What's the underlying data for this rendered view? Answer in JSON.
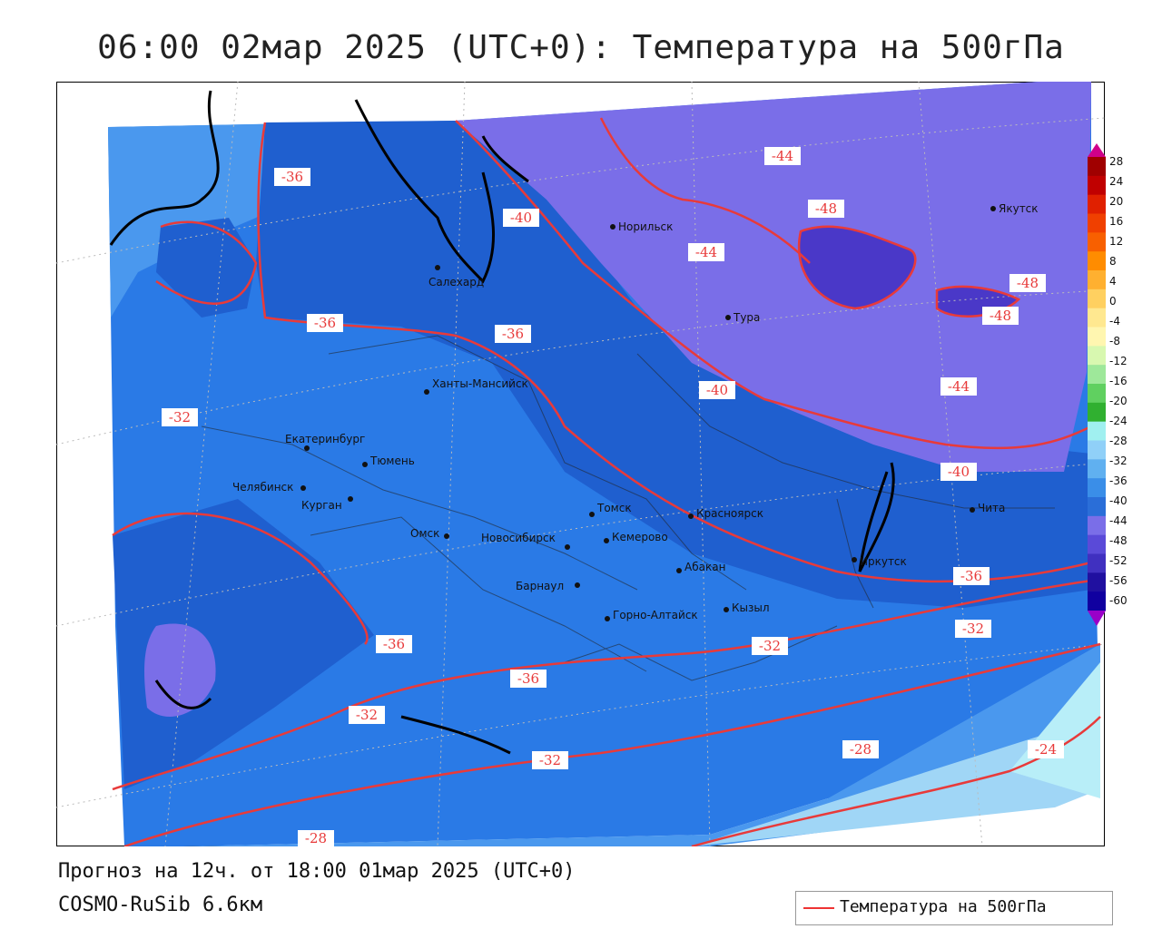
{
  "title": "06:00 02мар 2025 (UTC+0): Температура на 500гПа",
  "footer": {
    "forecast": "Прогноз на 12ч. от 18:00 01мар 2025 (UTC+0)",
    "model": "COSMO-RuSib 6.6км"
  },
  "legend": {
    "label": "Температура на 500гПа",
    "color": "#e83a3a"
  },
  "colorbar": {
    "ticks": [
      "28",
      "24",
      "20",
      "16",
      "12",
      "8",
      "4",
      "0",
      "-4",
      "-8",
      "-12",
      "-16",
      "-20",
      "-24",
      "-28",
      "-32",
      "-36",
      "-40",
      "-44",
      "-48",
      "-52",
      "-56",
      "-60"
    ],
    "colors": [
      "#a00000",
      "#c00000",
      "#e02000",
      "#f04000",
      "#f86000",
      "#ff8c00",
      "#ffb030",
      "#ffd060",
      "#ffe890",
      "#fff6b0",
      "#d8f8b0",
      "#9ee89a",
      "#60d060",
      "#30b030",
      "#a0f0f0",
      "#90d0f8",
      "#60b0f0",
      "#3a8ee8",
      "#2a6ed8",
      "#7a6ee8",
      "#5a4ad8",
      "#4030c0",
      "#2010a0",
      "#1000a0"
    ]
  },
  "contour_labels": [
    "-44",
    "-48",
    "-48",
    "-48",
    "-40",
    "-44",
    "-36",
    "-36",
    "-36",
    "-40",
    "-44",
    "-32",
    "-40",
    "-36",
    "-32",
    "-32",
    "-36",
    "-36",
    "-32",
    "-32",
    "-28",
    "-24",
    "-28"
  ],
  "cities": [
    "Норильск",
    "Якутск",
    "Салехард",
    "Тура",
    "Ханты-Мансийск",
    "Екатеринбург",
    "Тюмень",
    "Челябинск",
    "Курган",
    "Омск",
    "Новосибирск",
    "Томск",
    "Кемерово",
    "Красноярск",
    "Барнаул",
    "Абакан",
    "Иркутск",
    "Чита",
    "Кызыл",
    "Горно-Алтайск"
  ]
}
